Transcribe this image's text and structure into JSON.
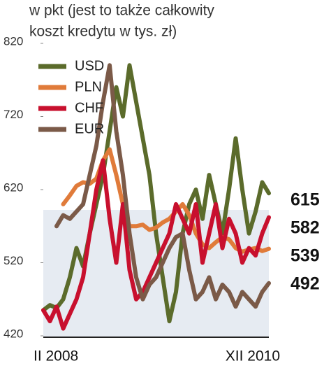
{
  "chart_data": {
    "type": "line",
    "title": [
      "w pkt (jest to także całkowity",
      "koszt kredytu w tys. zł)"
    ],
    "categories": [
      "II 2008",
      null,
      null,
      null,
      null,
      null,
      null,
      null,
      null,
      null,
      null,
      null,
      null,
      null,
      null,
      null,
      null,
      null,
      null,
      null,
      null,
      null,
      null,
      null,
      null,
      null,
      null,
      null,
      null,
      null,
      null,
      null,
      null,
      null,
      "XII 2010"
    ],
    "ylim": [
      420,
      820
    ],
    "yticks": [
      420,
      520,
      620,
      720,
      820
    ],
    "series": [
      {
        "name": "USD",
        "color": "#5b6b2b",
        "values": [
          455,
          462,
          458,
          470,
          500,
          540,
          515,
          560,
          600,
          640,
          700,
          760,
          720,
          790,
          740,
          690,
          640,
          560,
          500,
          440,
          480,
          560,
          600,
          620,
          580,
          640,
          600,
          560,
          620,
          690,
          620,
          560,
          590,
          630,
          615
        ]
      },
      {
        "name": "PLN",
        "color": "#e07b3a",
        "values": [
          null,
          null,
          null,
          600,
          612,
          625,
          630,
          628,
          635,
          660,
          675,
          640,
          600,
          570,
          570,
          572,
          565,
          568,
          575,
          580,
          590,
          600,
          585,
          560,
          545,
          540,
          548,
          555,
          552,
          540,
          535,
          538,
          540,
          536,
          539
        ]
      },
      {
        "name": "CHF",
        "color": "#c8102e",
        "values": [
          455,
          440,
          460,
          430,
          450,
          470,
          500,
          560,
          620,
          660,
          580,
          520,
          600,
          510,
          470,
          480,
          500,
          520,
          540,
          560,
          600,
          580,
          560,
          600,
          520,
          560,
          600,
          540,
          580,
          560,
          520,
          540,
          530,
          560,
          582
        ]
      },
      {
        "name": "EUR",
        "color": "#7b5a48",
        "values": [
          null,
          null,
          570,
          585,
          580,
          590,
          600,
          640,
          680,
          740,
          790,
          700,
          640,
          560,
          500,
          470,
          490,
          500,
          520,
          540,
          555,
          560,
          510,
          470,
          480,
          500,
          470,
          490,
          480,
          460,
          480,
          470,
          460,
          480,
          492
        ]
      }
    ]
  }
}
